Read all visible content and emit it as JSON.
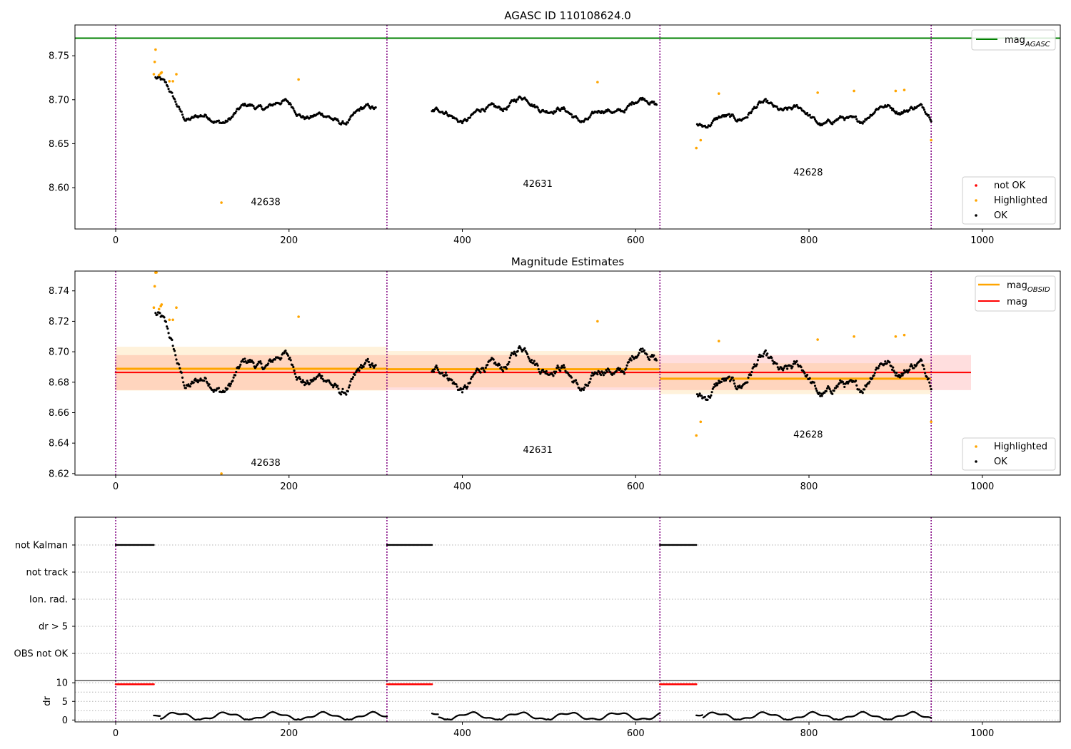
{
  "chart_data": [
    {
      "type": "scatter",
      "title": "AGASC ID 110108624.0",
      "xlim": [
        -47,
        1090
      ],
      "ylim": [
        8.553,
        8.785
      ],
      "xticks": [
        0,
        200,
        400,
        600,
        800,
        1000
      ],
      "yticks": [
        8.6,
        8.65,
        8.7,
        8.75
      ],
      "ytick_labels": [
        "8.60",
        "8.65",
        "8.70",
        "8.75"
      ],
      "grid": false,
      "hlines": [
        {
          "name": "mag",
          "sub": "AGASC",
          "y": 8.77,
          "color": "#008000"
        }
      ],
      "obs_boundaries": [
        0,
        313,
        628,
        941
      ],
      "obs_labels": [
        {
          "text": "42638",
          "x": 156,
          "y": 8.58
        },
        {
          "text": "42631",
          "x": 470,
          "y": 8.601
        },
        {
          "text": "42628",
          "x": 782,
          "y": 8.614
        }
      ],
      "series": [
        {
          "name": "not OK",
          "color": "#ff0000",
          "points": []
        },
        {
          "name": "Highlighted",
          "color": "#ffa500",
          "points": [
            [
              44,
              8.729
            ],
            [
              45,
              8.743
            ],
            [
              46,
              8.757
            ],
            [
              50,
              8.728
            ],
            [
              52,
              8.73
            ],
            [
              53,
              8.731
            ],
            [
              62,
              8.721
            ],
            [
              66,
              8.721
            ],
            [
              70,
              8.729
            ],
            [
              122,
              8.583
            ],
            [
              211,
              8.723
            ],
            [
              556,
              8.72
            ],
            [
              670,
              8.645
            ],
            [
              675,
              8.654
            ],
            [
              696,
              8.707
            ],
            [
              810,
              8.708
            ],
            [
              852,
              8.71
            ],
            [
              900,
              8.71
            ],
            [
              910,
              8.711
            ],
            [
              941,
              8.654
            ]
          ]
        },
        {
          "name": "OK",
          "color": "#000000",
          "points": []
        }
      ],
      "ok_runs": [
        [
          46,
          300,
          8.686,
          "a"
        ],
        [
          365,
          624,
          8.689,
          "b"
        ],
        [
          671,
          941,
          8.683,
          "c"
        ]
      ],
      "legend_lines_position": "upper-right",
      "legend_points_position": "lower-right"
    },
    {
      "type": "scatter",
      "title": "Magnitude Estimates",
      "xlim": [
        -47,
        1090
      ],
      "ylim": [
        8.619,
        8.753
      ],
      "xticks": [
        0,
        200,
        400,
        600,
        800,
        1000
      ],
      "yticks": [
        8.62,
        8.64,
        8.66,
        8.68,
        8.7,
        8.72,
        8.74
      ],
      "ytick_labels": [
        "8.62",
        "8.64",
        "8.66",
        "8.68",
        "8.70",
        "8.72",
        "8.74"
      ],
      "grid": false,
      "lines": [
        {
          "name": "mag",
          "sub": "OBSID",
          "color": "#ffa500",
          "segments": [
            [
              0,
              313,
              8.6888
            ],
            [
              313,
              628,
              8.6885
            ],
            [
              628,
              941,
              8.6823
            ]
          ]
        },
        {
          "name": "mag",
          "sub": "",
          "color": "#ff0000",
          "segments": [
            [
              -1,
              987,
              8.6864
            ]
          ]
        }
      ],
      "bands": [
        {
          "color": "#ff0000",
          "opacity": 0.13,
          "segments": [
            [
              -1,
              987,
              8.6748,
              8.6978
            ]
          ]
        },
        {
          "color": "#ffa500",
          "opacity": 0.14,
          "segments": [
            [
              0,
              313,
              8.6745,
              8.7033
            ],
            [
              313,
              628,
              8.6766,
              8.7005
            ],
            [
              628,
              941,
              8.6722,
              8.6925
            ]
          ]
        }
      ],
      "obs_boundaries": [
        0,
        313,
        628,
        941
      ],
      "obs_labels": [
        {
          "text": "42638",
          "x": 156,
          "y": 8.625
        },
        {
          "text": "42631",
          "x": 470,
          "y": 8.6335
        },
        {
          "text": "42628",
          "x": 782,
          "y": 8.6435
        }
      ],
      "series": [
        {
          "name": "Highlighted",
          "color": "#ffa500",
          "points": [
            [
              44,
              8.729
            ],
            [
              45,
              8.743
            ],
            [
              46,
              8.752
            ],
            [
              47,
              8.753
            ],
            [
              50,
              8.728
            ],
            [
              52,
              8.73
            ],
            [
              53,
              8.731
            ],
            [
              62,
              8.721
            ],
            [
              66,
              8.721
            ],
            [
              70,
              8.729
            ],
            [
              122,
              8.62
            ],
            [
              211,
              8.723
            ],
            [
              556,
              8.72
            ],
            [
              670,
              8.645
            ],
            [
              675,
              8.654
            ],
            [
              696,
              8.707
            ],
            [
              810,
              8.708
            ],
            [
              852,
              8.71
            ],
            [
              900,
              8.71
            ],
            [
              910,
              8.711
            ],
            [
              941,
              8.654
            ]
          ]
        },
        {
          "name": "OK",
          "color": "#000000",
          "points": []
        }
      ],
      "legend_lines_position": "upper-right",
      "legend_points_position": "lower-right"
    },
    {
      "type": "scatter",
      "title": "",
      "xlim": [
        -47,
        1090
      ],
      "xticks": [
        0,
        200,
        400,
        600,
        800,
        1000
      ],
      "grid": true,
      "flag_rows": [
        "not Kalman",
        "not track",
        "Ion. rad.",
        "dr > 5",
        "OBS not OK"
      ],
      "flag_runs": [
        {
          "row": "not Kalman",
          "ranges": [
            [
              0,
              44
            ],
            [
              313,
              365
            ],
            [
              628,
              670
            ]
          ]
        }
      ],
      "dr_panel": {
        "ylabel": "dr",
        "ylim": [
          -0.5,
          10.6
        ],
        "yticks": [
          0,
          5,
          10
        ],
        "ytick_labels": [
          "0",
          "5",
          "10"
        ],
        "red_ranges": [
          [
            0,
            44
          ],
          [
            313,
            365
          ],
          [
            628,
            670
          ]
        ],
        "red_value": 9.6,
        "black_ranges": [
          [
            44,
            313
          ],
          [
            365,
            628
          ],
          [
            670,
            941
          ]
        ]
      }
    }
  ]
}
